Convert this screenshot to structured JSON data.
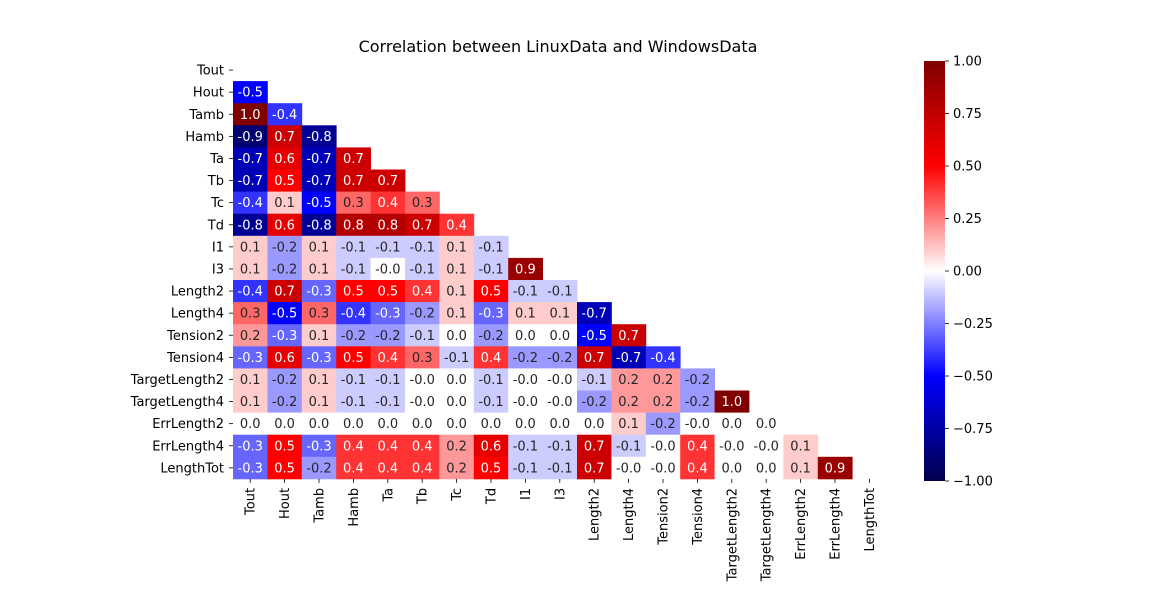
{
  "chart_data": {
    "type": "heatmap",
    "title": "Correlation between LinuxData and WindowsData",
    "xlabel": "",
    "ylabel": "",
    "mask": "upper-triangle-including-diagonal",
    "colormap": "seismic",
    "colormap_stops": [
      "#00004c",
      "#0000ff",
      "#ffffff",
      "#ff0000",
      "#800000"
    ],
    "vmin": -1.0,
    "vmax": 1.0,
    "annotation_format": "0.1f",
    "colorbar_ticks": [
      "1.00",
      "0.75",
      "0.50",
      "0.25",
      "0.00",
      "−0.25",
      "−0.50",
      "−0.75",
      "−1.00"
    ],
    "colorbar_tick_values": [
      1.0,
      0.75,
      0.5,
      0.25,
      0.0,
      -0.25,
      -0.5,
      -0.75,
      -1.0
    ],
    "labels": [
      "Tout",
      "Hout",
      "Tamb",
      "Hamb",
      "Ta",
      "Tb",
      "Tc",
      "Td",
      "I1",
      "I3",
      "Length2",
      "Length4",
      "Tension2",
      "Tension4",
      "TargetLength2",
      "TargetLength4",
      "ErrLength2",
      "ErrLength4",
      "LengthTot"
    ],
    "values": [
      [],
      [
        -0.5
      ],
      [
        1.0,
        -0.4
      ],
      [
        -0.9,
        0.7,
        -0.8
      ],
      [
        -0.7,
        0.6,
        -0.7,
        0.7
      ],
      [
        -0.7,
        0.5,
        -0.7,
        0.7,
        0.7
      ],
      [
        -0.4,
        0.1,
        -0.5,
        0.3,
        0.4,
        0.3
      ],
      [
        -0.8,
        0.6,
        -0.8,
        0.8,
        0.8,
        0.7,
        0.4
      ],
      [
        0.1,
        -0.2,
        0.1,
        -0.1,
        -0.1,
        -0.1,
        0.1,
        -0.1
      ],
      [
        0.1,
        -0.2,
        0.1,
        -0.1,
        -0.0,
        -0.1,
        0.1,
        -0.1,
        0.9
      ],
      [
        -0.4,
        0.7,
        -0.3,
        0.5,
        0.5,
        0.4,
        0.1,
        0.5,
        -0.1,
        -0.1
      ],
      [
        0.3,
        -0.5,
        0.3,
        -0.4,
        -0.3,
        -0.2,
        0.1,
        -0.3,
        0.1,
        0.1,
        -0.7
      ],
      [
        0.2,
        -0.3,
        0.1,
        -0.2,
        -0.2,
        -0.1,
        0.0,
        -0.2,
        0.0,
        0.0,
        -0.5,
        0.7
      ],
      [
        -0.3,
        0.6,
        -0.3,
        0.5,
        0.4,
        0.3,
        -0.1,
        0.4,
        -0.2,
        -0.2,
        0.7,
        -0.7,
        -0.4
      ],
      [
        0.1,
        -0.2,
        0.1,
        -0.1,
        -0.1,
        -0.0,
        0.0,
        -0.1,
        -0.0,
        -0.0,
        -0.1,
        0.2,
        0.2,
        -0.2
      ],
      [
        0.1,
        -0.2,
        0.1,
        -0.1,
        -0.1,
        -0.0,
        0.0,
        -0.1,
        -0.0,
        -0.0,
        -0.2,
        0.2,
        0.2,
        -0.2,
        1.0
      ],
      [
        0.0,
        0.0,
        0.0,
        0.0,
        0.0,
        0.0,
        0.0,
        0.0,
        0.0,
        0.0,
        0.0,
        0.1,
        -0.2,
        -0.0,
        0.0,
        0.0
      ],
      [
        -0.3,
        0.5,
        -0.3,
        0.4,
        0.4,
        0.4,
        0.2,
        0.6,
        -0.1,
        -0.1,
        0.7,
        -0.1,
        -0.0,
        0.4,
        -0.0,
        -0.0,
        0.1
      ],
      [
        -0.3,
        0.5,
        -0.2,
        0.4,
        0.4,
        0.4,
        0.2,
        0.5,
        -0.1,
        -0.1,
        0.7,
        -0.0,
        -0.0,
        0.4,
        0.0,
        0.0,
        0.1,
        0.9
      ]
    ]
  }
}
